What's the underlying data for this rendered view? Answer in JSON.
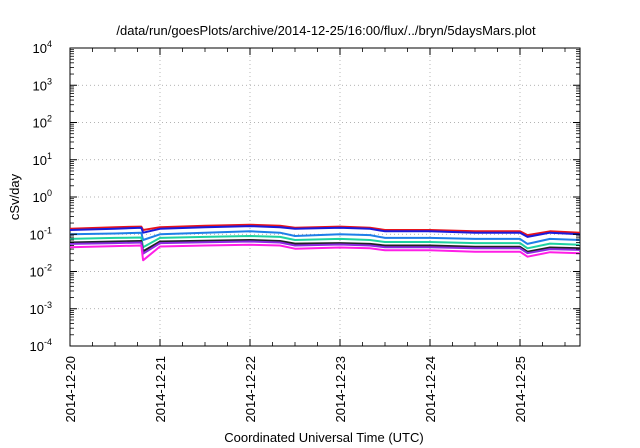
{
  "chart_data": {
    "type": "line",
    "title": "/data/run/goesPlots/archive/2014-12-25/16:00/flux/../bryn/5daysMars.plot",
    "xlabel": "Coordinated Universal Time (UTC)",
    "ylabel": "cSv/day",
    "yscale": "log",
    "ylim": [
      0.0001,
      10000
    ],
    "xlim": [
      "2014-12-20T00:00",
      "2014-12-25T16:00"
    ],
    "grid": true,
    "legend": "none",
    "x_ticks": [
      "2014-12-20",
      "2014-12-21",
      "2014-12-22",
      "2014-12-23",
      "2014-12-24",
      "2014-12-25"
    ],
    "y_ticks": [
      {
        "value": 0.0001,
        "base": "10",
        "exp": "-4"
      },
      {
        "value": 0.001,
        "base": "10",
        "exp": "-3"
      },
      {
        "value": 0.01,
        "base": "10",
        "exp": "-2"
      },
      {
        "value": 0.1,
        "base": "10",
        "exp": "-1"
      },
      {
        "value": 1,
        "base": "10",
        "exp": "0"
      },
      {
        "value": 10,
        "base": "10",
        "exp": "1"
      },
      {
        "value": 100,
        "base": "10",
        "exp": "2"
      },
      {
        "value": 1000,
        "base": "10",
        "exp": "3"
      },
      {
        "value": 10000,
        "base": "10",
        "exp": "4"
      }
    ],
    "x": [
      "2014-12-20T00:00",
      "2014-12-20T12:00",
      "2014-12-20T19:00",
      "2014-12-20T19:30",
      "2014-12-21T00:00",
      "2014-12-21T12:00",
      "2014-12-22T00:00",
      "2014-12-22T08:00",
      "2014-12-22T12:00",
      "2014-12-23T00:00",
      "2014-12-23T08:00",
      "2014-12-23T12:00",
      "2014-12-24T00:00",
      "2014-12-24T12:00",
      "2014-12-25T00:00",
      "2014-12-25T02:00",
      "2014-12-25T08:00",
      "2014-12-25T16:00"
    ],
    "series": [
      {
        "color": "#e8141c",
        "values": [
          0.14,
          0.155,
          0.16,
          0.13,
          0.155,
          0.17,
          0.18,
          0.17,
          0.15,
          0.16,
          0.15,
          0.13,
          0.13,
          0.12,
          0.12,
          0.095,
          0.12,
          0.11
        ]
      },
      {
        "color": "#1a1adb",
        "values": [
          0.13,
          0.14,
          0.15,
          0.11,
          0.14,
          0.155,
          0.165,
          0.155,
          0.14,
          0.15,
          0.14,
          0.12,
          0.12,
          0.11,
          0.11,
          0.085,
          0.11,
          0.1
        ]
      },
      {
        "color": "#1e7fe8",
        "values": [
          0.1,
          0.105,
          0.11,
          0.07,
          0.1,
          0.11,
          0.12,
          0.11,
          0.09,
          0.1,
          0.095,
          0.08,
          0.08,
          0.075,
          0.075,
          0.055,
          0.075,
          0.07
        ]
      },
      {
        "color": "#1ed2a0",
        "values": [
          0.075,
          0.08,
          0.082,
          0.045,
          0.08,
          0.085,
          0.09,
          0.085,
          0.07,
          0.075,
          0.07,
          0.062,
          0.062,
          0.058,
          0.058,
          0.042,
          0.056,
          0.052
        ]
      },
      {
        "color": "#222222",
        "values": [
          0.06,
          0.064,
          0.066,
          0.035,
          0.064,
          0.067,
          0.07,
          0.066,
          0.056,
          0.058,
          0.055,
          0.05,
          0.05,
          0.046,
          0.046,
          0.034,
          0.044,
          0.042
        ]
      },
      {
        "color": "#8a2be2",
        "values": [
          0.055,
          0.058,
          0.06,
          0.03,
          0.058,
          0.061,
          0.064,
          0.06,
          0.05,
          0.053,
          0.05,
          0.045,
          0.045,
          0.042,
          0.042,
          0.031,
          0.04,
          0.038
        ]
      },
      {
        "color": "#ff1ee6",
        "values": [
          0.045,
          0.048,
          0.05,
          0.02,
          0.047,
          0.05,
          0.052,
          0.05,
          0.041,
          0.044,
          0.042,
          0.037,
          0.037,
          0.034,
          0.034,
          0.025,
          0.033,
          0.031
        ]
      }
    ]
  }
}
